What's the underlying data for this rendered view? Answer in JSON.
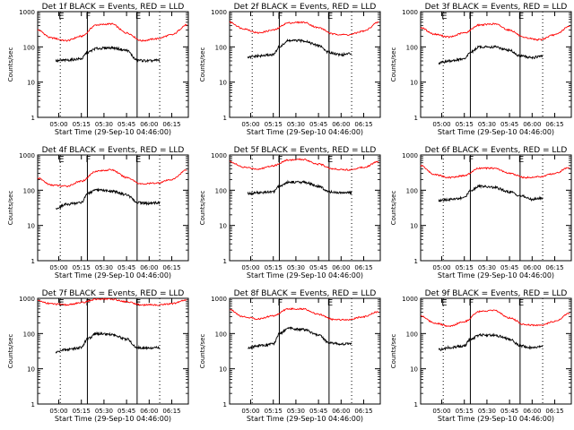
{
  "figure": {
    "start_time_label": "Start Time (29-Sep-10 04:46:00)",
    "ylabel": "Counts/sec",
    "colors": {
      "events": "#000000",
      "lld": "#ff0000",
      "axis": "#000000"
    }
  },
  "chart_data": [
    {
      "type": "line",
      "title": "Det 1f BLACK = Events, RED = LLD",
      "xlabel": "Start Time (29-Sep-10 04:46:00)",
      "ylabel": "Counts/sec",
      "yscale": "log",
      "ylim": [
        1,
        1000
      ],
      "xlim": [
        "04:46:00",
        "06:26:00"
      ],
      "x_ticks": [
        "05:00",
        "05:15",
        "05:30",
        "05:45",
        "06:00",
        "06:15"
      ],
      "y_ticks": [
        "1",
        "10",
        "100",
        "1000"
      ],
      "markers": [
        {
          "time": "05:01",
          "label": "E",
          "style": "dotted"
        },
        {
          "time": "05:19",
          "label": "F",
          "style": "solid"
        },
        {
          "time": "05:52",
          "label": "E",
          "style": "solid"
        },
        {
          "time": "06:07",
          "label": "",
          "style": "dotted"
        }
      ],
      "series": [
        {
          "name": "LLD",
          "color": "#ff0000",
          "x": [
            "04:46",
            "04:55",
            "05:05",
            "05:15",
            "05:25",
            "05:35",
            "05:45",
            "05:55",
            "06:05",
            "06:15",
            "06:25"
          ],
          "y": [
            300,
            180,
            150,
            200,
            420,
            450,
            250,
            150,
            170,
            220,
            420
          ]
        },
        {
          "name": "Events",
          "color": "#000000",
          "x": [
            "04:58",
            "05:05",
            "05:15",
            "05:19",
            "05:25",
            "05:35",
            "05:45",
            "05:52",
            "06:00",
            "06:07"
          ],
          "y": [
            40,
            42,
            46,
            70,
            90,
            95,
            80,
            42,
            40,
            42
          ]
        }
      ]
    },
    {
      "type": "line",
      "title": "Det 2f BLACK = Events, RED = LLD",
      "xlabel": "Start Time (29-Sep-10 04:46:00)",
      "ylabel": "Counts/sec",
      "yscale": "log",
      "ylim": [
        1,
        1000
      ],
      "xlim": [
        "04:46:00",
        "06:26:00"
      ],
      "x_ticks": [
        "05:00",
        "05:15",
        "05:30",
        "05:45",
        "06:00",
        "06:15"
      ],
      "y_ticks": [
        "1",
        "10",
        "100",
        "1000"
      ],
      "markers": [
        {
          "time": "05:01",
          "label": "",
          "style": "dotted"
        },
        {
          "time": "05:19",
          "label": "F",
          "style": "solid"
        },
        {
          "time": "05:52",
          "label": "E",
          "style": "solid"
        },
        {
          "time": "06:07",
          "label": "",
          "style": "dotted"
        }
      ],
      "series": [
        {
          "name": "LLD",
          "color": "#ff0000",
          "x": [
            "04:46",
            "04:55",
            "05:05",
            "05:15",
            "05:25",
            "05:35",
            "05:45",
            "05:55",
            "06:05",
            "06:15",
            "06:25"
          ],
          "y": [
            500,
            330,
            250,
            300,
            480,
            500,
            350,
            230,
            220,
            280,
            500
          ]
        },
        {
          "name": "Events",
          "color": "#000000",
          "x": [
            "04:58",
            "05:05",
            "05:15",
            "05:19",
            "05:25",
            "05:35",
            "05:45",
            "05:52",
            "06:00",
            "06:07"
          ],
          "y": [
            50,
            55,
            60,
            100,
            150,
            150,
            110,
            70,
            60,
            65
          ]
        }
      ]
    },
    {
      "type": "line",
      "title": "Det 3f BLACK = Events, RED = LLD",
      "xlabel": "Start Time (29-Sep-10 04:46:00)",
      "ylabel": "Counts/sec",
      "yscale": "log",
      "ylim": [
        1,
        1000
      ],
      "xlim": [
        "04:46:00",
        "06:26:00"
      ],
      "x_ticks": [
        "05:00",
        "05:15",
        "05:30",
        "05:45",
        "06:00",
        "06:15"
      ],
      "y_ticks": [
        "1",
        "10",
        "100",
        "1000"
      ],
      "markers": [
        {
          "time": "05:01",
          "label": "E",
          "style": "dotted"
        },
        {
          "time": "05:19",
          "label": "F",
          "style": "solid"
        },
        {
          "time": "05:52",
          "label": "E",
          "style": "solid"
        },
        {
          "time": "06:07",
          "label": "",
          "style": "dotted"
        }
      ],
      "series": [
        {
          "name": "LLD",
          "color": "#ff0000",
          "x": [
            "04:46",
            "04:55",
            "05:05",
            "05:15",
            "05:25",
            "05:35",
            "05:45",
            "05:55",
            "06:05",
            "06:15",
            "06:25"
          ],
          "y": [
            350,
            230,
            190,
            250,
            420,
            450,
            300,
            180,
            160,
            220,
            380
          ]
        },
        {
          "name": "Events",
          "color": "#000000",
          "x": [
            "04:58",
            "05:05",
            "05:15",
            "05:19",
            "05:25",
            "05:35",
            "05:45",
            "05:52",
            "06:00",
            "06:07"
          ],
          "y": [
            35,
            40,
            45,
            70,
            100,
            100,
            80,
            55,
            50,
            55
          ]
        }
      ]
    },
    {
      "type": "line",
      "title": "Det 4f BLACK = Events, RED = LLD",
      "xlabel": "Start Time (29-Sep-10 04:46:00)",
      "ylabel": "Counts/sec",
      "yscale": "log",
      "ylim": [
        1,
        1000
      ],
      "xlim": [
        "04:46:00",
        "06:26:00"
      ],
      "x_ticks": [
        "05:00",
        "05:15",
        "05:30",
        "05:45",
        "06:00",
        "06:15"
      ],
      "y_ticks": [
        "1",
        "10",
        "100",
        "1000"
      ],
      "markers": [
        {
          "time": "05:01",
          "label": "E",
          "style": "dotted"
        },
        {
          "time": "05:19",
          "label": "F",
          "style": "solid"
        },
        {
          "time": "05:52",
          "label": "E",
          "style": "solid"
        },
        {
          "time": "06:07",
          "label": "",
          "style": "dotted"
        }
      ],
      "series": [
        {
          "name": "LLD",
          "color": "#ff0000",
          "x": [
            "04:46",
            "04:55",
            "05:05",
            "05:15",
            "05:25",
            "05:35",
            "05:45",
            "05:55",
            "06:05",
            "06:15",
            "06:25"
          ],
          "y": [
            220,
            140,
            130,
            180,
            350,
            380,
            230,
            150,
            160,
            200,
            380
          ]
        },
        {
          "name": "Events",
          "color": "#000000",
          "x": [
            "04:58",
            "05:05",
            "05:15",
            "05:19",
            "05:25",
            "05:35",
            "05:45",
            "05:52",
            "06:00",
            "06:07"
          ],
          "y": [
            30,
            40,
            45,
            80,
            100,
            95,
            75,
            45,
            42,
            45
          ]
        }
      ]
    },
    {
      "type": "line",
      "title": "Det 5f BLACK = Events, RED = LLD",
      "xlabel": "Start Time (29-Sep-10 04:46:00)",
      "ylabel": "Counts/sec",
      "yscale": "log",
      "ylim": [
        1,
        1000
      ],
      "xlim": [
        "04:46:00",
        "06:26:00"
      ],
      "x_ticks": [
        "05:00",
        "05:15",
        "05:30",
        "05:45",
        "06:00",
        "06:15"
      ],
      "y_ticks": [
        "1",
        "10",
        "100",
        "1000"
      ],
      "markers": [
        {
          "time": "05:01",
          "label": "",
          "style": "dotted"
        },
        {
          "time": "05:19",
          "label": "F",
          "style": "solid"
        },
        {
          "time": "05:52",
          "label": "E",
          "style": "solid"
        },
        {
          "time": "06:07",
          "label": "",
          "style": "dotted"
        }
      ],
      "series": [
        {
          "name": "LLD",
          "color": "#ff0000",
          "x": [
            "04:46",
            "04:55",
            "05:05",
            "05:15",
            "05:25",
            "05:35",
            "05:45",
            "05:55",
            "06:05",
            "06:15",
            "06:25"
          ],
          "y": [
            650,
            450,
            400,
            500,
            720,
            750,
            550,
            400,
            380,
            450,
            650
          ]
        },
        {
          "name": "Events",
          "color": "#000000",
          "x": [
            "04:58",
            "05:05",
            "05:15",
            "05:19",
            "05:25",
            "05:35",
            "05:45",
            "05:52",
            "06:00",
            "06:07"
          ],
          "y": [
            80,
            85,
            90,
            130,
            170,
            170,
            130,
            90,
            85,
            85
          ]
        }
      ]
    },
    {
      "type": "line",
      "title": "Det 6f BLACK = Events, RED = LLD",
      "xlabel": "Start Time (29-Sep-10 04:46:00)",
      "ylabel": "Counts/sec",
      "yscale": "log",
      "ylim": [
        1,
        1000
      ],
      "xlim": [
        "04:46:00",
        "06:26:00"
      ],
      "x_ticks": [
        "05:00",
        "05:15",
        "05:30",
        "05:45",
        "06:00",
        "06:15"
      ],
      "y_ticks": [
        "1",
        "10",
        "100",
        "1000"
      ],
      "markers": [
        {
          "time": "05:01",
          "label": "",
          "style": "dotted"
        },
        {
          "time": "05:19",
          "label": "F",
          "style": "solid"
        },
        {
          "time": "05:52",
          "label": "E",
          "style": "solid"
        },
        {
          "time": "06:07",
          "label": "",
          "style": "dotted"
        }
      ],
      "series": [
        {
          "name": "LLD",
          "color": "#ff0000",
          "x": [
            "04:46",
            "04:55",
            "05:05",
            "05:15",
            "05:25",
            "05:35",
            "05:45",
            "05:55",
            "06:05",
            "06:15",
            "06:25"
          ],
          "y": [
            500,
            280,
            230,
            260,
            420,
            420,
            300,
            230,
            240,
            300,
            450
          ]
        },
        {
          "name": "Events",
          "color": "#000000",
          "x": [
            "04:58",
            "05:05",
            "05:15",
            "05:19",
            "05:25",
            "05:35",
            "05:45",
            "05:52",
            "06:00",
            "06:07"
          ],
          "y": [
            50,
            55,
            60,
            100,
            130,
            120,
            90,
            70,
            55,
            60
          ]
        }
      ]
    },
    {
      "type": "line",
      "title": "Det 7f BLACK = Events, RED = LLD",
      "xlabel": "Start Time (29-Sep-10 04:46:00)",
      "ylabel": "Counts/sec",
      "yscale": "log",
      "ylim": [
        1,
        1000
      ],
      "xlim": [
        "04:46:00",
        "06:26:00"
      ],
      "x_ticks": [
        "05:00",
        "05:15",
        "05:30",
        "05:45",
        "06:00",
        "06:15"
      ],
      "y_ticks": [
        "1",
        "10",
        "100",
        "1000"
      ],
      "markers": [
        {
          "time": "05:01",
          "label": "E",
          "style": "dotted"
        },
        {
          "time": "05:19",
          "label": "F",
          "style": "solid"
        },
        {
          "time": "05:52",
          "label": "E",
          "style": "solid"
        },
        {
          "time": "06:07",
          "label": "",
          "style": "dotted"
        }
      ],
      "series": [
        {
          "name": "LLD",
          "color": "#ff0000",
          "x": [
            "04:46",
            "04:55",
            "05:05",
            "05:15",
            "05:25",
            "05:35",
            "05:45",
            "05:55",
            "06:05",
            "06:15",
            "06:25"
          ],
          "y": [
            850,
            700,
            650,
            750,
            950,
            950,
            800,
            650,
            650,
            700,
            900
          ]
        },
        {
          "name": "Events",
          "color": "#000000",
          "x": [
            "04:58",
            "05:05",
            "05:15",
            "05:19",
            "05:25",
            "05:35",
            "05:45",
            "05:52",
            "06:00",
            "06:07"
          ],
          "y": [
            30,
            35,
            40,
            70,
            100,
            95,
            70,
            40,
            38,
            40
          ]
        }
      ]
    },
    {
      "type": "line",
      "title": "Det 8f BLACK = Events, RED = LLD",
      "xlabel": "Start Time (29-Sep-10 04:46:00)",
      "ylabel": "Counts/sec",
      "yscale": "log",
      "ylim": [
        1,
        1000
      ],
      "xlim": [
        "04:46:00",
        "06:26:00"
      ],
      "x_ticks": [
        "05:00",
        "05:15",
        "05:30",
        "05:45",
        "06:00",
        "06:15"
      ],
      "y_ticks": [
        "1",
        "10",
        "100",
        "1000"
      ],
      "markers": [
        {
          "time": "05:01",
          "label": "",
          "style": "dotted"
        },
        {
          "time": "05:19",
          "label": "F",
          "style": "solid"
        },
        {
          "time": "05:52",
          "label": "E",
          "style": "solid"
        },
        {
          "time": "06:07",
          "label": "",
          "style": "dotted"
        }
      ],
      "series": [
        {
          "name": "LLD",
          "color": "#ff0000",
          "x": [
            "04:46",
            "04:55",
            "05:05",
            "05:15",
            "05:25",
            "05:35",
            "05:45",
            "05:55",
            "06:05",
            "06:15",
            "06:25"
          ],
          "y": [
            480,
            300,
            260,
            320,
            500,
            500,
            350,
            250,
            250,
            300,
            420
          ]
        },
        {
          "name": "Events",
          "color": "#000000",
          "x": [
            "04:58",
            "05:05",
            "05:15",
            "05:19",
            "05:25",
            "05:35",
            "05:45",
            "05:52",
            "06:00",
            "06:07"
          ],
          "y": [
            40,
            45,
            50,
            100,
            140,
            130,
            90,
            55,
            50,
            52
          ]
        }
      ]
    },
    {
      "type": "line",
      "title": "Det 9f BLACK = Events, RED = LLD",
      "xlabel": "Start Time (29-Sep-10 04:46:00)",
      "ylabel": "Counts/sec",
      "yscale": "log",
      "ylim": [
        1,
        1000
      ],
      "xlim": [
        "04:46:00",
        "06:26:00"
      ],
      "x_ticks": [
        "05:00",
        "05:15",
        "05:30",
        "05:45",
        "06:00",
        "06:15"
      ],
      "y_ticks": [
        "1",
        "10",
        "100",
        "1000"
      ],
      "markers": [
        {
          "time": "05:01",
          "label": "E",
          "style": "dotted"
        },
        {
          "time": "05:19",
          "label": "F",
          "style": "solid"
        },
        {
          "time": "05:52",
          "label": "E",
          "style": "solid"
        },
        {
          "time": "06:07",
          "label": "",
          "style": "dotted"
        }
      ],
      "series": [
        {
          "name": "LLD",
          "color": "#ff0000",
          "x": [
            "04:46",
            "04:55",
            "05:05",
            "05:15",
            "05:25",
            "05:35",
            "05:45",
            "05:55",
            "06:05",
            "06:15",
            "06:25"
          ],
          "y": [
            320,
            200,
            160,
            220,
            420,
            450,
            280,
            180,
            170,
            220,
            380
          ]
        },
        {
          "name": "Events",
          "color": "#000000",
          "x": [
            "04:58",
            "05:05",
            "05:15",
            "05:19",
            "05:25",
            "05:35",
            "05:45",
            "05:52",
            "06:00",
            "06:07"
          ],
          "y": [
            35,
            40,
            45,
            70,
            90,
            90,
            70,
            45,
            40,
            45
          ]
        }
      ]
    }
  ]
}
